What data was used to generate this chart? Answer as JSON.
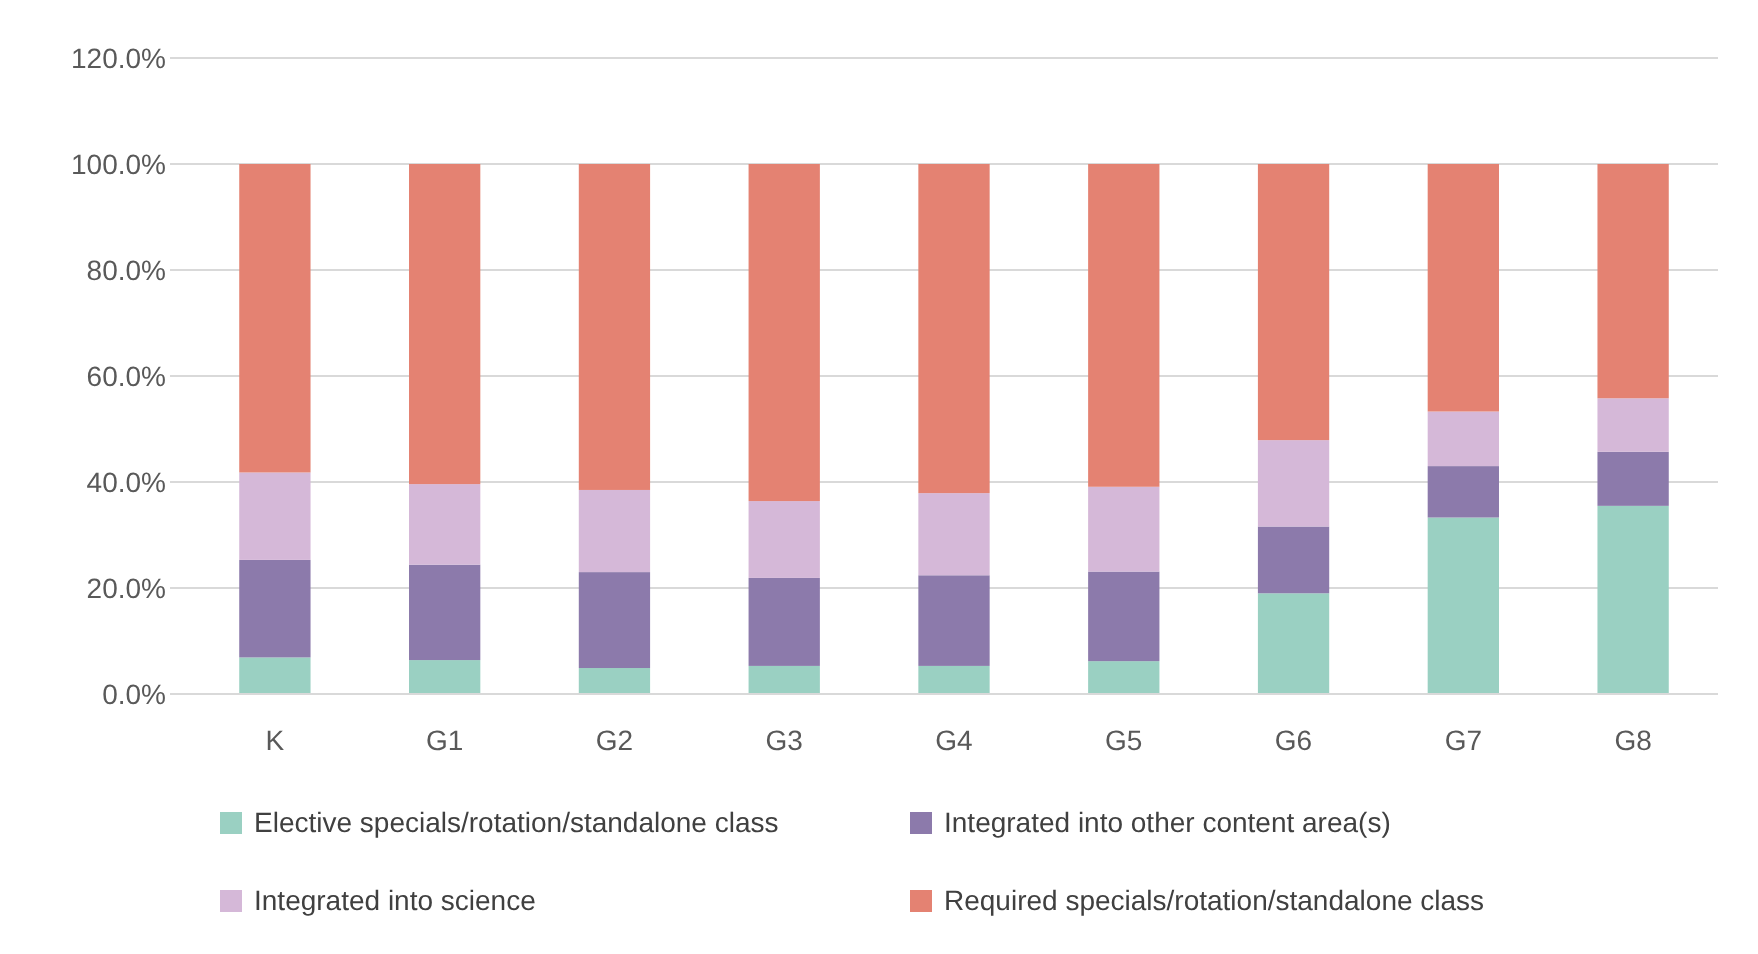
{
  "chart_data": {
    "type": "bar",
    "stacked": true,
    "categories": [
      "K",
      "G1",
      "G2",
      "G3",
      "G4",
      "G5",
      "G6",
      "G7",
      "G8"
    ],
    "series": [
      {
        "name": "Elective specials/rotation/standalone class",
        "color": "#9ad0c2",
        "values": [
          6.9,
          6.4,
          4.9,
          5.3,
          5.3,
          6.2,
          19.0,
          33.3,
          35.5
        ]
      },
      {
        "name": "Integrated into other content area(s)",
        "color": "#8c7aab",
        "values": [
          18.4,
          18.0,
          18.1,
          16.6,
          17.1,
          16.9,
          12.6,
          9.7,
          10.2
        ]
      },
      {
        "name": "Integrated into science",
        "color": "#d5b8d8",
        "values": [
          16.5,
          15.2,
          15.5,
          14.5,
          15.5,
          16.0,
          16.3,
          10.3,
          10.1
        ]
      },
      {
        "name": "Required specials/rotation/standalone class",
        "color": "#e48272",
        "values": [
          58.2,
          60.4,
          61.5,
          63.6,
          62.1,
          60.9,
          52.1,
          46.7,
          44.2
        ]
      }
    ],
    "ylim": [
      0,
      120
    ],
    "yticks": [
      {
        "value": 0,
        "label": "0.0%"
      },
      {
        "value": 20,
        "label": "20.0%"
      },
      {
        "value": 40,
        "label": "40.0%"
      },
      {
        "value": 60,
        "label": "60.0%"
      },
      {
        "value": 80,
        "label": "80.0%"
      },
      {
        "value": 100,
        "label": "100.0%"
      },
      {
        "value": 120,
        "label": "120.0%"
      }
    ],
    "grid": "y",
    "legend": "bottom"
  }
}
